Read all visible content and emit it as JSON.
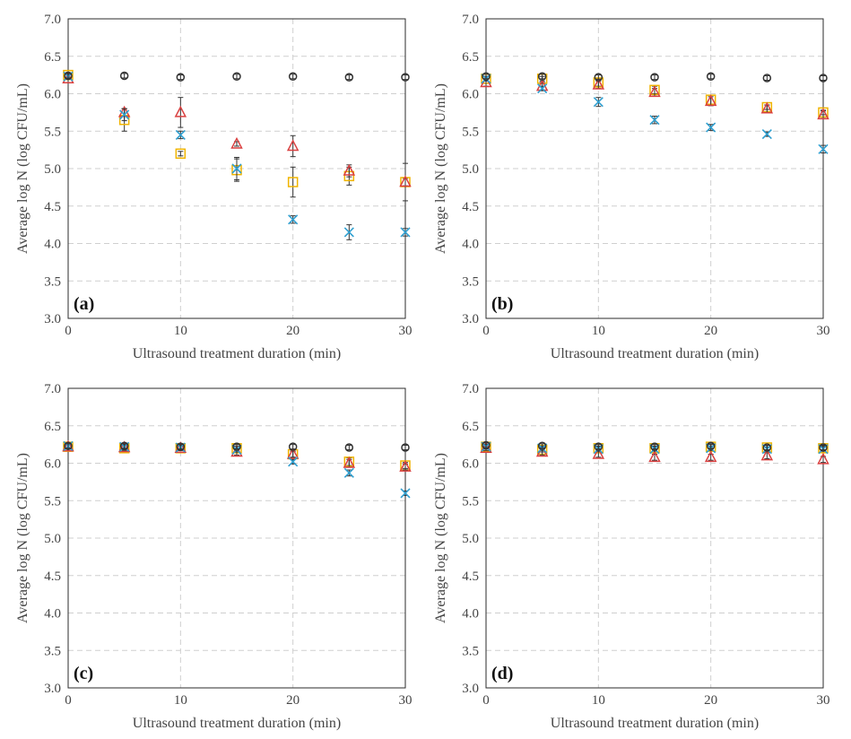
{
  "colors": {
    "s1": "#333333",
    "s2": "#2f9fd0",
    "s3": "#d94040",
    "s4": "#f0b400"
  },
  "axis_labels": {
    "ylabel": "Average  log N (log CFU/mL)",
    "xlabel": "Ultrasound treatment duration (min)"
  },
  "chart_data": [
    {
      "type": "scatter",
      "panel_label": "(a)",
      "xlabel": "Ultrasound treatment duration (min)",
      "ylabel": "Average  log N (log CFU/mL)",
      "xlim": [
        0,
        30
      ],
      "ylim": [
        3.0,
        7.0
      ],
      "x_ticks": [
        0,
        10,
        20,
        30
      ],
      "y_ticks": [
        3.0,
        3.5,
        4.0,
        4.5,
        5.0,
        5.5,
        6.0,
        6.5,
        7.0
      ],
      "x_tick_labels": [
        "0",
        "10",
        "20",
        "30"
      ],
      "y_tick_labels": [
        "3.0",
        "3.5",
        "4.0",
        "4.5",
        "5.0",
        "5.5",
        "6.0",
        "6.5",
        "7.0"
      ],
      "grid": true,
      "x": [
        0,
        5,
        10,
        15,
        20,
        25,
        30
      ],
      "series": [
        {
          "marker": "circle",
          "color": "#333333",
          "values": [
            6.24,
            6.24,
            6.22,
            6.23,
            6.23,
            6.22,
            6.22
          ],
          "errors": [
            0.03,
            0.03,
            0.03,
            0.03,
            0.03,
            0.03,
            0.03
          ]
        },
        {
          "marker": "x",
          "color": "#2f9fd0",
          "values": [
            6.23,
            5.72,
            5.45,
            5.0,
            4.32,
            4.15,
            4.15
          ],
          "errors": [
            0.03,
            0.08,
            0.05,
            0.15,
            0.05,
            0.1,
            0.05
          ]
        },
        {
          "marker": "triangle",
          "color": "#d94040",
          "values": [
            6.2,
            5.75,
            5.75,
            5.33,
            5.3,
            4.97,
            4.82
          ],
          "errors": [
            0.05,
            0.05,
            0.2,
            0.03,
            0.14,
            0.08,
            0.25
          ]
        },
        {
          "marker": "square",
          "color": "#f0b400",
          "values": [
            6.25,
            5.65,
            5.2,
            4.98,
            4.82,
            4.9,
            4.82
          ],
          "errors": [
            0.03,
            0.15,
            0.03,
            0.15,
            0.2,
            0.12,
            0.05
          ]
        }
      ]
    },
    {
      "type": "scatter",
      "panel_label": "(b)",
      "xlabel": "Ultrasound treatment duration (min)",
      "ylabel": "Average  log N (log CFU/mL)",
      "xlim": [
        0,
        30
      ],
      "ylim": [
        3.0,
        7.0
      ],
      "x_ticks": [
        0,
        10,
        20,
        30
      ],
      "y_ticks": [
        3.0,
        3.5,
        4.0,
        4.5,
        5.0,
        5.5,
        6.0,
        6.5,
        7.0
      ],
      "x_tick_labels": [
        "0",
        "10",
        "20",
        "30"
      ],
      "y_tick_labels": [
        "3.0",
        "3.5",
        "4.0",
        "4.5",
        "5.0",
        "5.5",
        "6.0",
        "6.5",
        "7.0"
      ],
      "grid": true,
      "x": [
        0,
        5,
        10,
        15,
        20,
        25,
        30
      ],
      "series": [
        {
          "marker": "circle",
          "color": "#333333",
          "values": [
            6.23,
            6.23,
            6.22,
            6.22,
            6.23,
            6.21,
            6.21
          ],
          "errors": [
            0.03,
            0.03,
            0.03,
            0.03,
            0.03,
            0.03,
            0.03
          ]
        },
        {
          "marker": "x",
          "color": "#2f9fd0",
          "values": [
            6.2,
            6.07,
            5.89,
            5.65,
            5.55,
            5.46,
            5.26
          ],
          "errors": [
            0.03,
            0.03,
            0.06,
            0.05,
            0.04,
            0.03,
            0.05
          ]
        },
        {
          "marker": "triangle",
          "color": "#d94040",
          "values": [
            6.15,
            6.1,
            6.12,
            6.02,
            5.9,
            5.8,
            5.72
          ],
          "errors": [
            0.05,
            0.05,
            0.05,
            0.05,
            0.06,
            0.05,
            0.05
          ]
        },
        {
          "marker": "square",
          "color": "#f0b400",
          "values": [
            6.2,
            6.2,
            6.15,
            6.05,
            5.92,
            5.82,
            5.75
          ],
          "errors": [
            0.03,
            0.03,
            0.05,
            0.05,
            0.06,
            0.03,
            0.03
          ]
        }
      ]
    },
    {
      "type": "scatter",
      "panel_label": "(c)",
      "xlabel": "Ultrasound treatment duration (min)",
      "ylabel": "Average  log N (log CFU/mL)",
      "xlim": [
        0,
        30
      ],
      "ylim": [
        3.0,
        7.0
      ],
      "x_ticks": [
        0,
        10,
        20,
        30
      ],
      "y_ticks": [
        3.0,
        3.5,
        4.0,
        4.5,
        5.0,
        5.5,
        6.0,
        6.5,
        7.0
      ],
      "x_tick_labels": [
        "0",
        "10",
        "20",
        "30"
      ],
      "y_tick_labels": [
        "3.0",
        "3.5",
        "4.0",
        "4.5",
        "5.0",
        "5.5",
        "6.0",
        "6.5",
        "7.0"
      ],
      "grid": true,
      "x": [
        0,
        5,
        10,
        15,
        20,
        25,
        30
      ],
      "series": [
        {
          "marker": "circle",
          "color": "#333333",
          "values": [
            6.23,
            6.23,
            6.22,
            6.22,
            6.22,
            6.21,
            6.21
          ],
          "errors": [
            0.03,
            0.03,
            0.03,
            0.03,
            0.03,
            0.03,
            0.03
          ]
        },
        {
          "marker": "x",
          "color": "#2f9fd0",
          "values": [
            6.23,
            6.22,
            6.21,
            6.18,
            6.02,
            5.87,
            5.6
          ],
          "errors": [
            0.03,
            0.03,
            0.03,
            0.03,
            0.03,
            0.04,
            0.03
          ]
        },
        {
          "marker": "triangle",
          "color": "#d94040",
          "values": [
            6.22,
            6.21,
            6.2,
            6.15,
            6.12,
            6.0,
            5.95
          ],
          "errors": [
            0.03,
            0.03,
            0.03,
            0.04,
            0.04,
            0.05,
            0.04
          ]
        },
        {
          "marker": "square",
          "color": "#f0b400",
          "values": [
            6.22,
            6.2,
            6.2,
            6.2,
            6.12,
            6.02,
            5.97
          ],
          "errors": [
            0.03,
            0.03,
            0.03,
            0.03,
            0.04,
            0.05,
            0.04
          ]
        }
      ]
    },
    {
      "type": "scatter",
      "panel_label": "(d)",
      "xlabel": "Ultrasound treatment duration (min)",
      "ylabel": "Average  log N (log CFU/mL)",
      "xlim": [
        0,
        30
      ],
      "ylim": [
        3.0,
        7.0
      ],
      "x_ticks": [
        0,
        10,
        20,
        30
      ],
      "y_ticks": [
        3.0,
        3.5,
        4.0,
        4.5,
        5.0,
        5.5,
        6.0,
        6.5,
        7.0
      ],
      "x_tick_labels": [
        "0",
        "10",
        "20",
        "30"
      ],
      "y_tick_labels": [
        "3.0",
        "3.5",
        "4.0",
        "4.5",
        "5.0",
        "5.5",
        "6.0",
        "6.5",
        "7.0"
      ],
      "grid": true,
      "x": [
        0,
        5,
        10,
        15,
        20,
        25,
        30
      ],
      "series": [
        {
          "marker": "circle",
          "color": "#333333",
          "values": [
            6.24,
            6.23,
            6.22,
            6.22,
            6.23,
            6.21,
            6.21
          ],
          "errors": [
            0.03,
            0.03,
            0.03,
            0.03,
            0.03,
            0.03,
            0.03
          ]
        },
        {
          "marker": "x",
          "color": "#2f9fd0",
          "values": [
            6.22,
            6.2,
            6.19,
            6.19,
            6.2,
            6.19,
            6.19
          ],
          "errors": [
            0.03,
            0.03,
            0.03,
            0.03,
            0.03,
            0.03,
            0.03
          ]
        },
        {
          "marker": "triangle",
          "color": "#d94040",
          "values": [
            6.2,
            6.15,
            6.12,
            6.08,
            6.08,
            6.1,
            6.05
          ],
          "errors": [
            0.03,
            0.04,
            0.04,
            0.04,
            0.04,
            0.04,
            0.04
          ]
        },
        {
          "marker": "square",
          "color": "#f0b400",
          "values": [
            6.22,
            6.18,
            6.2,
            6.2,
            6.22,
            6.21,
            6.2
          ],
          "errors": [
            0.03,
            0.03,
            0.03,
            0.03,
            0.03,
            0.03,
            0.03
          ]
        }
      ]
    }
  ]
}
